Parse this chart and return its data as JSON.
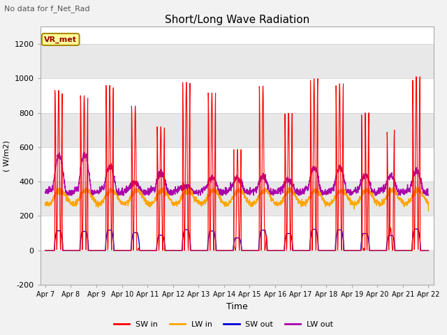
{
  "title": "Short/Long Wave Radiation",
  "xlabel": "Time",
  "ylabel": "( W/m2)",
  "top_left_text": "No data for f_Net_Rad",
  "legend_label": "VR_met",
  "ylim": [
    -200,
    1300
  ],
  "yticks": [
    -200,
    0,
    200,
    400,
    600,
    800,
    1000,
    1200
  ],
  "x_labels": [
    "Apr 7",
    "Apr 8",
    "Apr 9",
    "Apr 10",
    "Apr 11",
    "Apr 12",
    "Apr 13",
    "Apr 14",
    "Apr 15",
    "Apr 16",
    "Apr 17",
    "Apr 18",
    "Apr 19",
    "Apr 20",
    "Apr 21",
    "Apr 22"
  ],
  "colors": {
    "SW_in": "#ff0000",
    "LW_in": "#ffa500",
    "SW_out": "#0000dd",
    "LW_out": "#aa00aa"
  },
  "legend_entries": [
    "SW in",
    "LW in",
    "SW out",
    "LW out"
  ],
  "plot_bg_color": "#ffffff",
  "band_colors": [
    "#e8e8e8",
    "#ffffff"
  ],
  "grid_color": "#cccccc",
  "vr_met_box_color": "#ffff99",
  "vr_met_text_color": "#990000",
  "vr_met_border_color": "#aa8800",
  "sw_in_peaks": [
    930,
    900,
    960,
    840,
    720,
    980,
    920,
    590,
    960,
    800,
    1000,
    970,
    800,
    700,
    1010
  ],
  "lw_out_peaks": [
    560,
    570,
    500,
    400,
    460,
    380,
    430,
    430,
    440,
    420,
    490,
    490,
    450,
    440,
    470
  ],
  "n_days": 15,
  "n_per_day": 144
}
